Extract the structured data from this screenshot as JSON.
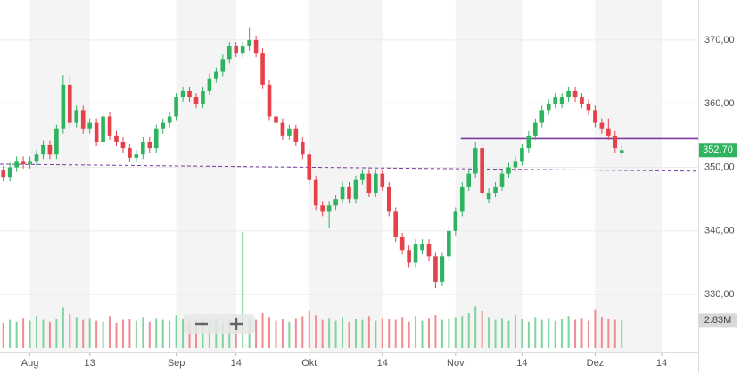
{
  "chart_data": {
    "type": "candlestick",
    "x": [
      0,
      1,
      2,
      3,
      4,
      5,
      6,
      7,
      8,
      9,
      10,
      11,
      12,
      13,
      14,
      15,
      16,
      17,
      18,
      19,
      20,
      21,
      22,
      23,
      24,
      25,
      26,
      27,
      28,
      29,
      30,
      31,
      32,
      33,
      34,
      35,
      36,
      37,
      38,
      39,
      40,
      41,
      42,
      43,
      44,
      45,
      46,
      47,
      48,
      49,
      50,
      51,
      52,
      53,
      54,
      55,
      56,
      57,
      58,
      59,
      60,
      61,
      62,
      63,
      64,
      65,
      66,
      67,
      68,
      69,
      70,
      71,
      72,
      73,
      74,
      75,
      76,
      77,
      78,
      79,
      80,
      81,
      82,
      83,
      84,
      85,
      86,
      87,
      88,
      89,
      90,
      91,
      92,
      93
    ],
    "open": [
      349.5,
      348.5,
      350,
      351,
      350.5,
      351,
      352,
      353.5,
      352,
      356,
      363,
      357,
      359,
      356,
      357,
      354,
      358,
      355,
      354,
      353,
      351.5,
      352,
      354,
      353,
      356,
      357,
      358,
      361,
      362,
      361,
      360,
      362,
      364,
      365,
      367,
      369,
      368,
      369,
      370,
      368,
      363,
      358,
      357,
      355,
      356,
      354,
      352,
      348,
      344,
      343,
      344,
      345,
      347,
      345,
      348,
      349,
      346,
      349,
      347,
      343,
      339,
      337,
      335,
      337,
      338,
      336,
      332,
      336,
      340,
      343,
      347,
      349,
      353,
      345,
      346,
      347,
      349,
      350,
      351,
      353,
      355,
      357,
      359,
      360,
      360,
      361,
      362,
      361,
      360,
      359,
      357,
      356,
      355,
      352.2
    ],
    "high": [
      350.2,
      350.7,
      351.7,
      351.7,
      351.7,
      352.7,
      354.2,
      354.2,
      356.7,
      364.5,
      364.5,
      359.7,
      359.7,
      357.7,
      357.7,
      358.7,
      358.7,
      355.7,
      354.7,
      353.7,
      352.7,
      354.7,
      354.7,
      356.7,
      357.7,
      358.7,
      361.7,
      362.7,
      362.7,
      361.7,
      362.7,
      364.7,
      365.7,
      367.7,
      369.7,
      369.7,
      369.7,
      372,
      370.7,
      368.7,
      363.7,
      358.7,
      357.7,
      356.7,
      356.7,
      354.7,
      352.7,
      348.7,
      344.7,
      344.7,
      345.7,
      347.7,
      347.7,
      348.7,
      349.7,
      349.7,
      349.7,
      349.7,
      347.7,
      343.7,
      339.7,
      337.7,
      338.7,
      338.7,
      338.7,
      336.7,
      336.7,
      340.7,
      343.7,
      347.7,
      349.7,
      354,
      353.7,
      346.7,
      347.7,
      349.7,
      350.7,
      351.7,
      353.7,
      355.7,
      357.7,
      359.7,
      360.7,
      361.7,
      361.7,
      362.7,
      362.7,
      361.7,
      360.7,
      359.7,
      357.7,
      357.7,
      355.7,
      353.4
    ],
    "low": [
      347.8,
      347.8,
      349.3,
      349.8,
      349.8,
      350.3,
      351.3,
      351.3,
      351.3,
      355.3,
      356.3,
      356.3,
      355.3,
      355.3,
      353.3,
      353.3,
      354.3,
      353.3,
      352.3,
      350.8,
      350.8,
      351.3,
      352.3,
      352.3,
      355.3,
      356.3,
      357.3,
      360.3,
      360.3,
      359.3,
      359.3,
      361.3,
      363.3,
      364.3,
      366.3,
      367.3,
      367.3,
      368.3,
      367.3,
      362.3,
      357.3,
      356.3,
      354.3,
      354.3,
      353.3,
      351.3,
      347.3,
      343.3,
      342.3,
      340.5,
      343.3,
      344.3,
      344.3,
      344.3,
      347.3,
      345.3,
      345.3,
      346.3,
      342.3,
      338.3,
      336.3,
      334.3,
      334.3,
      336.3,
      335.3,
      331,
      331.3,
      335.3,
      339.3,
      342.3,
      346.3,
      348.3,
      345.3,
      344.3,
      345.3,
      346.3,
      348.3,
      349.3,
      350.3,
      352.3,
      354.3,
      356.3,
      358.3,
      359.3,
      359.3,
      360.3,
      360.3,
      359.3,
      358.3,
      356.3,
      355.3,
      354.3,
      352.3,
      351.5
    ],
    "close": [
      348.5,
      350,
      351,
      350.5,
      351,
      352,
      353.5,
      352,
      356,
      363,
      357,
      359,
      356,
      357,
      354,
      358,
      355,
      354,
      353,
      351.5,
      352,
      354,
      353,
      356,
      357,
      358,
      361,
      362,
      361,
      360,
      362,
      364,
      365,
      367,
      369,
      368,
      369,
      370,
      368,
      363,
      358,
      357,
      355,
      356,
      354,
      352,
      348,
      344,
      343,
      344,
      345,
      347,
      345,
      348,
      349,
      346,
      349,
      347,
      343,
      339,
      337,
      335,
      338,
      338,
      336,
      332,
      336,
      340,
      343,
      347,
      349,
      353,
      346,
      346,
      347,
      349,
      350,
      351,
      353,
      355,
      357,
      359,
      360,
      361,
      361,
      362,
      361,
      360,
      359,
      357,
      356,
      355,
      353,
      352.7
    ],
    "volume": [
      2.6,
      2.9,
      2.7,
      3.1,
      2.8,
      3.3,
      2.9,
      2.7,
      3.0,
      4.2,
      3.5,
      3.2,
      2.9,
      3.1,
      2.8,
      2.7,
      3.3,
      2.6,
      2.9,
      3.0,
      2.8,
      3.2,
      2.7,
      3.1,
      2.9,
      2.8,
      3.4,
      3.0,
      2.7,
      2.9,
      3.2,
      2.8,
      3.0,
      2.6,
      2.9,
      3.3,
      12.0,
      3.1,
      2.9,
      3.6,
      3.2,
      2.8,
      3.0,
      2.7,
      3.1,
      3.3,
      3.9,
      3.4,
      2.9,
      3.1,
      2.8,
      3.2,
      2.7,
      3.0,
      2.9,
      3.3,
      2.8,
      3.1,
      3.0,
      2.9,
      3.2,
      2.7,
      3.3,
      2.8,
      3.1,
      3.4,
      2.9,
      3.0,
      3.2,
      3.3,
      3.6,
      4.3,
      3.8,
      3.2,
      2.9,
      3.1,
      2.8,
      3.4,
      3.0,
      2.7,
      3.2,
      2.9,
      3.1,
      2.8,
      3.0,
      3.3,
      2.9,
      3.1,
      2.8,
      4.0,
      3.2,
      3.0,
      2.9,
      2.83
    ],
    "volume_ylim": [
      0,
      36
    ],
    "up_color": "#2eb35e",
    "down_color": "#e5414a",
    "up_volume_color": "#7fd39c",
    "down_volume_color": "#f08b90",
    "xlim": [
      -0.5,
      104.5
    ],
    "xticks": [
      {
        "value": 4,
        "label": "Aug"
      },
      13,
      {
        "value": 26,
        "label": "Sep"
      },
      {
        "value": 35,
        "label": "14"
      },
      {
        "value": 46,
        "label": "Okt"
      },
      {
        "value": 57,
        "label": "14"
      },
      {
        "value": 68,
        "label": "Nov"
      },
      {
        "value": 78,
        "label": "14"
      },
      {
        "value": 89,
        "label": "Dez"
      },
      {
        "value": 99,
        "label": "14"
      }
    ],
    "ylim": [
      320.9,
      376.3
    ],
    "yticks": [
      {
        "value": 330,
        "label": "330,00"
      },
      {
        "value": 340,
        "label": "340,00"
      },
      {
        "value": 350,
        "label": "350,00"
      },
      {
        "value": 360,
        "label": "360,00"
      },
      {
        "value": 370,
        "label": "370,00"
      }
    ],
    "lines": [
      {
        "x": [
          68.8,
          104.5
        ],
        "y": [
          354.5,
          354.5
        ],
        "color": "#7a3aa0",
        "dashed": false
      },
      {
        "x": [
          -0.5,
          104.5
        ],
        "y": [
          350.5,
          349.4
        ],
        "color": "#7a3aa0",
        "dashed": true
      }
    ],
    "last_price": 352.7,
    "last_price_label": "352.70",
    "last_volume_label": "2.83M"
  }
}
